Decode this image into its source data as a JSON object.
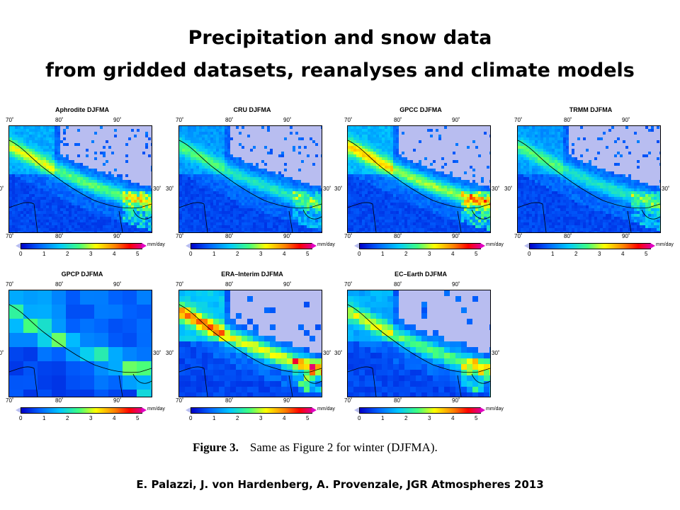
{
  "slide": {
    "title_line1": "Precipitation and snow data",
    "title_line2": "from gridded datasets, reanalyses and climate models",
    "caption_figure": "Figure 3.",
    "caption_text": "Same as Figure 2 for winter (DJFMA).",
    "credit": "E. Palazzi, J. von Hardenberg, A. Provenzale, JGR Atmospheres 2013"
  },
  "axes": {
    "lon_ticks": [
      "70˚",
      "80˚",
      "90˚"
    ],
    "lat_tick": "30˚",
    "colorbar_ticks": [
      "0",
      "1",
      "2",
      "3",
      "4",
      "5"
    ],
    "colorbar_unit": "mm/day"
  },
  "panels": [
    {
      "title": "Aphrodite DJFMA",
      "resolution": "fine",
      "intensity": "moderate"
    },
    {
      "title": "CRU DJFMA",
      "resolution": "fine",
      "intensity": "low"
    },
    {
      "title": "GPCC DJFMA",
      "resolution": "fine",
      "intensity": "moderate-high"
    },
    {
      "title": "TRMM DJFMA",
      "resolution": "fine",
      "intensity": "low"
    },
    {
      "title": "GPCP DJFMA",
      "resolution": "coarse",
      "intensity": "low"
    },
    {
      "title": "ERA–Interim DJFMA",
      "resolution": "medium",
      "intensity": "high"
    },
    {
      "title": "EC–Earth DJFMA",
      "resolution": "medium",
      "intensity": "moderate"
    }
  ],
  "colors": {
    "no_data": "#b8bdf0",
    "low": "#0000c8",
    "mid": "#00c8ff",
    "high": "#ffff00",
    "max": "#e00090"
  }
}
